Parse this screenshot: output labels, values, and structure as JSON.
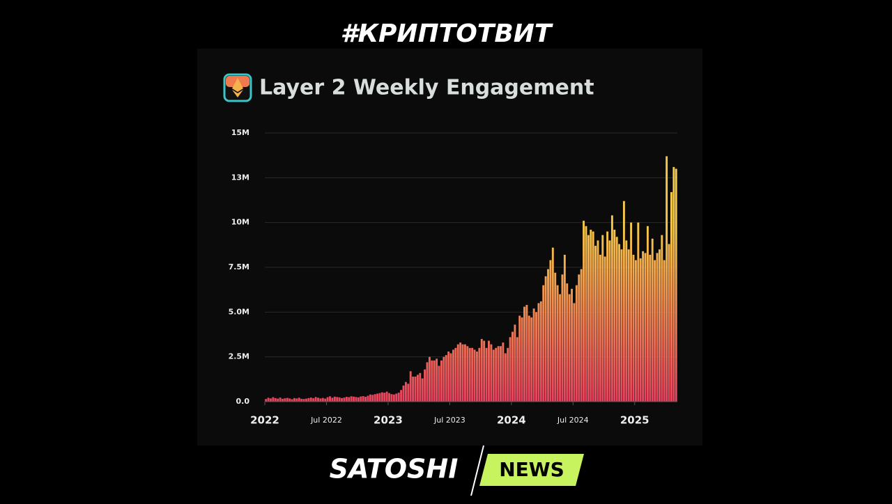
{
  "header": {
    "hashtag": "#КРИПТОТВИТ"
  },
  "chart_data": {
    "type": "bar",
    "title": "Layer 2 Weekly Engagement",
    "colors": [
      "#f7c948",
      "#e8435f"
    ],
    "values": [
      150000,
      220000,
      180000,
      250000,
      200000,
      170000,
      230000,
      160000,
      190000,
      210000,
      180000,
      140000,
      200000,
      180000,
      220000,
      160000,
      150000,
      170000,
      200000,
      230000,
      190000,
      260000,
      220000,
      180000,
      210000,
      170000,
      250000,
      300000,
      220000,
      280000,
      260000,
      240000,
      200000,
      230000,
      270000,
      250000,
      300000,
      280000,
      260000,
      240000,
      290000,
      310000,
      270000,
      330000,
      400000,
      380000,
      420000,
      450000,
      480000,
      520000,
      500000,
      560000,
      480000,
      420000,
      400000,
      450000,
      500000,
      650000,
      900000,
      1100000,
      1000000,
      1700000,
      1400000,
      1400000,
      1500000,
      1600000,
      1300000,
      1800000,
      2200000,
      2500000,
      2300000,
      2300000,
      2400000,
      2000000,
      2300000,
      2500000,
      2600000,
      2800000,
      2700000,
      2900000,
      3000000,
      3200000,
      3300000,
      3200000,
      3200000,
      3100000,
      3000000,
      3000000,
      2900000,
      2800000,
      3000000,
      3500000,
      3400000,
      3000000,
      3400000,
      3200000,
      2900000,
      3000000,
      3100000,
      3100000,
      3300000,
      2700000,
      3000000,
      3600000,
      3900000,
      4300000,
      3600000,
      4800000,
      4700000,
      5300000,
      5400000,
      4800000,
      4700000,
      5200000,
      5000000,
      5500000,
      5600000,
      6500000,
      7000000,
      7400000,
      7900000,
      8600000,
      7200000,
      6500000,
      6000000,
      7100000,
      8200000,
      6600000,
      6000000,
      6300000,
      5500000,
      6500000,
      7100000,
      7400000,
      10100000,
      9800000,
      9300000,
      9600000,
      9500000,
      8700000,
      9000000,
      8200000,
      9300000,
      8100000,
      9500000,
      9000000,
      10400000,
      9600000,
      9200000,
      8800000,
      8500000,
      11200000,
      9000000,
      8500000,
      10000000,
      8200000,
      7900000,
      10000000,
      8000000,
      8400000,
      8300000,
      9800000,
      8200000,
      9100000,
      7900000,
      8300000,
      8500000,
      9300000,
      7900000,
      13700000,
      8800000,
      11700000,
      13100000,
      13000000
    ],
    "ylim": [
      0,
      15000000
    ],
    "yticks": [
      {
        "value": 0,
        "label": "0.0"
      },
      {
        "value": 2500000,
        "label": "2.5M"
      },
      {
        "value": 5000000,
        "label": "5.0M"
      },
      {
        "value": 7500000,
        "label": "7.5M"
      },
      {
        "value": 10000000,
        "label": "10M"
      },
      {
        "value": 12500000,
        "label": "13M"
      },
      {
        "value": 15000000,
        "label": "15M"
      }
    ],
    "xlim": [
      0,
      174
    ],
    "xticks": [
      {
        "value": 0,
        "label": "2022"
      },
      {
        "value": 26,
        "label": "Jul 2022"
      },
      {
        "value": 52,
        "label": "2023"
      },
      {
        "value": 78,
        "label": "Jul 2023"
      },
      {
        "value": 104,
        "label": "2024"
      },
      {
        "value": 130,
        "label": "Jul 2024"
      },
      {
        "value": 156,
        "label": "2025"
      }
    ],
    "grid": true
  },
  "footer": {
    "brand": "SATOSHI",
    "tag": "NEWS"
  }
}
